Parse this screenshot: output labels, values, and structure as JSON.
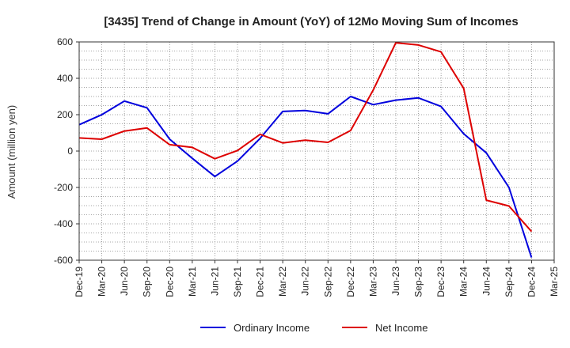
{
  "chart_data": {
    "type": "line",
    "title": "[3435]  Trend of Change in Amount (YoY) of 12Mo Moving Sum of Incomes",
    "xlabel": "",
    "ylabel": "Amount (million yen)",
    "ylim": [
      -600,
      600
    ],
    "yticks": [
      -600,
      -400,
      -200,
      0,
      200,
      400,
      600
    ],
    "ytick_labels": [
      "-600",
      "-400",
      "-200",
      "0",
      "200",
      "400",
      "600"
    ],
    "grid": true,
    "legend_position": "bottom",
    "categories": [
      "Dec-19",
      "Mar-20",
      "Jun-20",
      "Sep-20",
      "Dec-20",
      "Mar-21",
      "Jun-21",
      "Sep-21",
      "Dec-21",
      "Mar-22",
      "Jun-22",
      "Sep-22",
      "Dec-22",
      "Mar-23",
      "Jun-23",
      "Sep-23",
      "Dec-23",
      "Mar-24",
      "Jun-24",
      "Sep-24",
      "Dec-24",
      "Mar-25"
    ],
    "series": [
      {
        "name": "Ordinary Income",
        "color": "#0000dd",
        "values": [
          145,
          200,
          275,
          238,
          65,
          -40,
          -140,
          -55,
          70,
          218,
          223,
          205,
          300,
          255,
          280,
          292,
          245,
          95,
          -10,
          -200,
          -585,
          null
        ]
      },
      {
        "name": "Net Income",
        "color": "#dd0000",
        "values": [
          72,
          65,
          110,
          127,
          35,
          20,
          -42,
          3,
          92,
          45,
          60,
          48,
          113,
          335,
          595,
          583,
          545,
          345,
          -270,
          -302,
          -442,
          null
        ]
      }
    ]
  }
}
